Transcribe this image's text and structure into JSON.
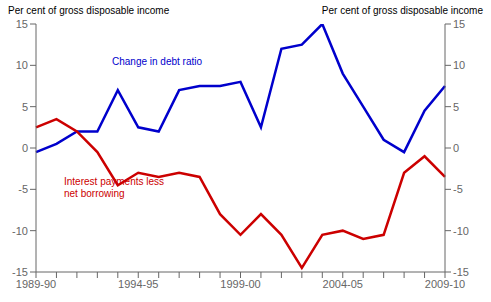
{
  "chart_data": {
    "type": "line",
    "categories": [
      "1989-90",
      null,
      null,
      null,
      null,
      "1994-95",
      null,
      null,
      null,
      null,
      "1999-00",
      null,
      null,
      null,
      null,
      "2004-05",
      null,
      null,
      null,
      null,
      "2009-10"
    ],
    "series": [
      {
        "name": "Change in debt ratio",
        "color": "#0000cc",
        "values": [
          -0.5,
          0.5,
          2.0,
          2.0,
          7.0,
          2.5,
          2.0,
          7.0,
          7.5,
          7.5,
          8.0,
          2.5,
          12.0,
          12.5,
          15.0,
          9.0,
          5.0,
          1.0,
          -0.5,
          4.5,
          7.5
        ]
      },
      {
        "name": "Interest payments less\nnet borrowing",
        "color": "#cc0000",
        "values": [
          2.5,
          3.5,
          2.0,
          -0.5,
          -4.5,
          -3.0,
          -3.5,
          -3.0,
          -3.5,
          -8.0,
          -10.5,
          -8.0,
          -10.5,
          -14.5,
          -10.5,
          -10.0,
          -11.0,
          -10.5,
          -3.0,
          -1.0,
          -3.5
        ]
      }
    ],
    "ylim": [
      -15,
      15
    ],
    "yticks": [
      -15,
      -10,
      -5,
      0,
      5,
      10,
      15
    ],
    "y2lim": [
      -15,
      15
    ],
    "y2ticks": [
      -15,
      -10,
      -5,
      0,
      5,
      10,
      15
    ],
    "ylabel": "Per cent of gross disposable income",
    "y2label": "Per cent of gross disposable income"
  }
}
